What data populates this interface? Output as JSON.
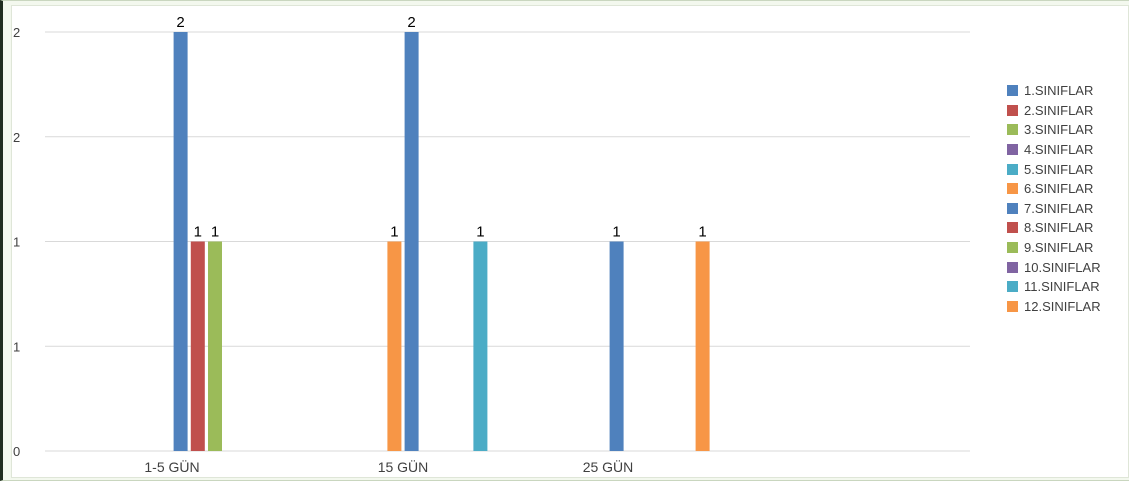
{
  "chart_data": {
    "type": "bar",
    "categories": [
      "1-5 GÜN",
      "15 GÜN",
      "25 GÜN"
    ],
    "ytick_labels": [
      "0",
      "1",
      "1",
      "2",
      "2"
    ],
    "ylim": [
      0,
      2
    ],
    "grid": true,
    "legend_position": "right",
    "series": [
      {
        "name": "1.SINIFLAR",
        "color": "#4F81BD",
        "values": [
          0,
          0,
          0
        ]
      },
      {
        "name": "2.SINIFLAR",
        "color": "#C0504D",
        "values": [
          0,
          0,
          0
        ]
      },
      {
        "name": "3.SINIFLAR",
        "color": "#9BBB59",
        "values": [
          0,
          0,
          0
        ]
      },
      {
        "name": "4.SINIFLAR",
        "color": "#8064A2",
        "values": [
          0,
          0,
          0
        ]
      },
      {
        "name": "5.SINIFLAR",
        "color": "#4BACC6",
        "values": [
          0,
          0,
          0
        ]
      },
      {
        "name": "6.SINIFLAR",
        "color": "#F79646",
        "values": [
          0,
          1,
          0
        ]
      },
      {
        "name": "7.SINIFLAR",
        "color": "#4F81BD",
        "values": [
          2,
          2,
          1
        ]
      },
      {
        "name": "8.SINIFLAR",
        "color": "#C0504D",
        "values": [
          1,
          0,
          0
        ]
      },
      {
        "name": "9.SINIFLAR",
        "color": "#9BBB59",
        "values": [
          1,
          0,
          0
        ]
      },
      {
        "name": "10.SINIFLAR",
        "color": "#8064A2",
        "values": [
          0,
          0,
          0
        ]
      },
      {
        "name": "11.SINIFLAR",
        "color": "#4BACC6",
        "values": [
          0,
          1,
          0
        ]
      },
      {
        "name": "12.SINIFLAR",
        "color": "#F79646",
        "values": [
          0,
          0,
          1
        ]
      }
    ]
  }
}
